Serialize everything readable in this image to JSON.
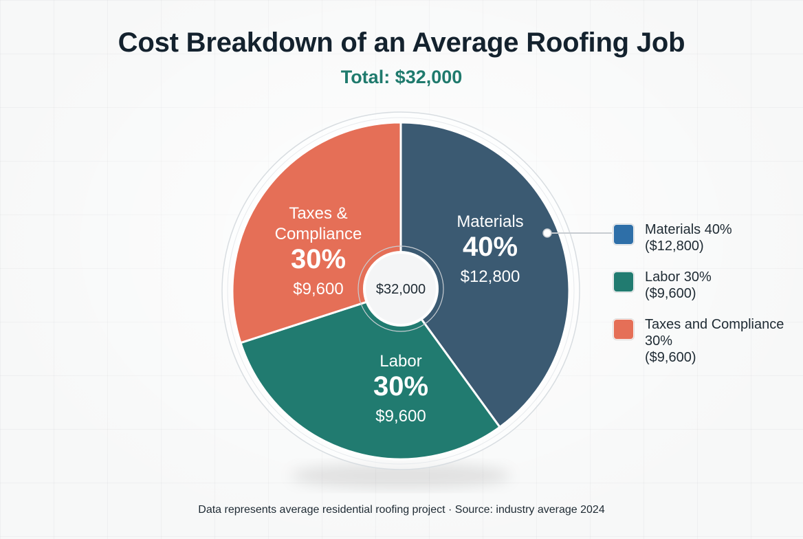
{
  "chart_data": {
    "type": "pie",
    "title": "Cost Breakdown of an Average Roofing Job",
    "subtitle": "Total: $32,000",
    "center_label": "$32,000",
    "categories": [
      "Materials",
      "Labor",
      "Taxes & Compliance"
    ],
    "values": [
      40,
      30,
      30
    ],
    "amounts": [
      "$12,800",
      "$9,600",
      "$9,600"
    ],
    "slices": [
      {
        "name": "Materials",
        "label_lines": [
          "Materials"
        ],
        "percent": 40,
        "percent_label": "40%",
        "amount": "$12,800",
        "color": "#3b5a72"
      },
      {
        "name": "Labor",
        "label_lines": [
          "Labor"
        ],
        "percent": 30,
        "percent_label": "30%",
        "amount": "$9,600",
        "color": "#217b70"
      },
      {
        "name": "Taxes & Compliance",
        "label_lines": [
          "Taxes &",
          "Compliance"
        ],
        "percent": 30,
        "percent_label": "30%",
        "amount": "$9,600",
        "color": "#e56f57"
      }
    ],
    "legend": {
      "placement": "right",
      "items": [
        {
          "label": "Materials 40%",
          "amount": "($12,800)",
          "color": "#2e6fa8"
        },
        {
          "label": "Labor 30%",
          "amount": "($9,600)",
          "color": "#217b70"
        },
        {
          "label": "Taxes and Compliance 30%",
          "amount": "($9,600)",
          "color": "#e56f57"
        }
      ]
    },
    "footnote": "Data represents average residential roofing project · Source: industry average 2024"
  }
}
